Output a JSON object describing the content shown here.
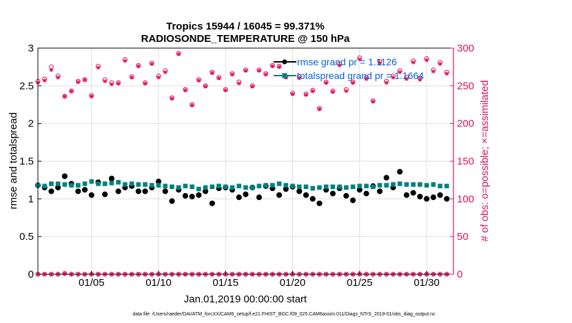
{
  "chart_data": {
    "type": "scatter",
    "title_line1": "Tropics 15944 / 16045 = 99.371%",
    "title_line2": "RADIOSONDE_TEMPERATURE @ 150 hPa",
    "xlabel": "Jan.01,2019 00:00:00 start",
    "ylabel_left": "rmse and totalspread",
    "ylabel_right": "# of obs: o=possible; ×=assimilated",
    "xlim": [
      1,
      32
    ],
    "ylim_left": [
      0,
      3
    ],
    "ylim_right": [
      0,
      300
    ],
    "x_ticks": [
      5,
      10,
      15,
      20,
      25,
      30
    ],
    "x_tick_labels": [
      "01/05",
      "01/10",
      "01/15",
      "01/20",
      "01/25",
      "01/30"
    ],
    "y_ticks_left": [
      "0",
      "0.5",
      "1",
      "1.5",
      "2",
      "2.5",
      "3"
    ],
    "y_ticks_right": [
      "0",
      "50",
      "100",
      "150",
      "200",
      "250",
      "300"
    ],
    "legend": {
      "position": "top-right",
      "entries": [
        "rmse grand pr = 1.1126",
        "totalspread grand pr = 1.1664"
      ]
    },
    "colors": {
      "rmse": "#000000",
      "totalspread": "#008080",
      "obs": "#e0115f",
      "grid": "#dedede",
      "legend_text": "#0b5ed7"
    },
    "x": [
      1.0,
      1.5,
      2.0,
      2.5,
      3.0,
      3.5,
      4.0,
      4.5,
      5.0,
      5.5,
      6.0,
      6.5,
      7.0,
      7.5,
      8.0,
      8.5,
      9.0,
      9.5,
      10.0,
      10.5,
      11.0,
      11.5,
      12.0,
      12.5,
      13.0,
      13.5,
      14.0,
      14.5,
      15.0,
      15.5,
      16.0,
      16.5,
      17.0,
      17.5,
      18.0,
      18.5,
      19.0,
      19.5,
      20.0,
      20.5,
      21.0,
      21.5,
      22.0,
      22.5,
      23.0,
      23.5,
      24.0,
      24.5,
      25.0,
      25.5,
      26.0,
      26.5,
      27.0,
      27.5,
      28.0,
      28.5,
      29.0,
      29.5,
      30.0,
      30.5,
      31.0,
      31.5
    ],
    "series": [
      {
        "name": "rmse",
        "axis": "left",
        "marker": "circle",
        "values": [
          1.18,
          1.15,
          1.1,
          1.15,
          1.3,
          1.2,
          1.1,
          1.12,
          1.05,
          1.22,
          1.06,
          1.27,
          1.1,
          1.15,
          1.17,
          1.1,
          1.1,
          1.15,
          1.23,
          1.1,
          0.97,
          1.12,
          1.04,
          1.03,
          1.05,
          1.1,
          0.94,
          1.14,
          1.15,
          1.12,
          1.02,
          1.06,
          1.15,
          1.02,
          1.17,
          1.14,
          1.05,
          1.13,
          1.16,
          1.1,
          1.05,
          1.0,
          0.94,
          1.12,
          1.07,
          1.14,
          1.04,
          0.98,
          1.12,
          1.07,
          1.17,
          1.1,
          1.28,
          1.15,
          1.36,
          1.05,
          1.08,
          1.03,
          1.0,
          1.02,
          1.05,
          1.0
        ]
      },
      {
        "name": "totalspread",
        "axis": "left",
        "marker": "square",
        "values": [
          1.18,
          1.17,
          1.2,
          1.2,
          1.19,
          1.18,
          1.18,
          1.2,
          1.23,
          1.2,
          1.2,
          1.21,
          1.22,
          1.19,
          1.2,
          1.19,
          1.19,
          1.18,
          1.18,
          1.17,
          1.16,
          1.15,
          1.17,
          1.16,
          1.13,
          1.15,
          1.16,
          1.17,
          1.16,
          1.15,
          1.17,
          1.15,
          1.15,
          1.17,
          1.18,
          1.18,
          1.2,
          1.18,
          1.17,
          1.16,
          1.16,
          1.14,
          1.15,
          1.16,
          1.16,
          1.16,
          1.15,
          1.16,
          1.17,
          1.17,
          1.16,
          1.18,
          1.18,
          1.19,
          1.2,
          1.19,
          1.19,
          1.19,
          1.18,
          1.19,
          1.17,
          1.17
        ]
      },
      {
        "name": "obs possible",
        "axis": "right",
        "marker": "circle-open",
        "values": [
          256,
          259,
          275,
          263,
          236,
          243,
          256,
          258,
          237,
          276,
          258,
          254,
          254,
          285,
          262,
          277,
          254,
          280,
          263,
          270,
          234,
          293,
          245,
          225,
          258,
          250,
          268,
          261,
          245,
          266,
          255,
          271,
          250,
          271,
          266,
          277,
          276,
          262,
          240,
          262,
          239,
          244,
          220,
          255,
          243,
          279,
          245,
          255,
          287,
          261,
          230,
          282,
          256,
          263,
          270,
          261,
          283,
          260,
          286,
          271,
          281,
          268
        ]
      },
      {
        "name": "obs assimilated",
        "axis": "right",
        "marker": "asterisk",
        "values": [
          254,
          257,
          271,
          261,
          236,
          243,
          255,
          258,
          236,
          274,
          256,
          252,
          253,
          283,
          261,
          276,
          253,
          279,
          261,
          268,
          233,
          292,
          244,
          224,
          257,
          249,
          267,
          260,
          244,
          265,
          253,
          270,
          249,
          270,
          265,
          276,
          275,
          261,
          239,
          260,
          238,
          243,
          219,
          254,
          242,
          277,
          243,
          254,
          285,
          259,
          229,
          280,
          254,
          261,
          268,
          259,
          281,
          258,
          284,
          269,
          279,
          266
        ]
      },
      {
        "name": "obs bottom possible",
        "axis": "right",
        "marker": "circle-open",
        "values": [
          0,
          0,
          0,
          0,
          1,
          0,
          0,
          0,
          0,
          0,
          0,
          0,
          0,
          0,
          0,
          0,
          0,
          0,
          0,
          0,
          0,
          0,
          0,
          0,
          0,
          0,
          0,
          0,
          0,
          0,
          0,
          0,
          0,
          0,
          0,
          0,
          0,
          0,
          0,
          0,
          0,
          0,
          0,
          0,
          0,
          0,
          0,
          0,
          0,
          0,
          0,
          0,
          0,
          0,
          0,
          0,
          0,
          0,
          0,
          0,
          0,
          0
        ]
      },
      {
        "name": "obs bottom assimilated",
        "axis": "right",
        "marker": "asterisk",
        "values": [
          0,
          0,
          0,
          0,
          1,
          0,
          0,
          0,
          0,
          0,
          0,
          0,
          0,
          0,
          0,
          0,
          0,
          0,
          0,
          0,
          0,
          0,
          0,
          0,
          0,
          0,
          0,
          0,
          0,
          0,
          0,
          0,
          0,
          0,
          0,
          0,
          0,
          0,
          0,
          0,
          0,
          0,
          0,
          0,
          0,
          0,
          0,
          0,
          0,
          0,
          0,
          0,
          0,
          0,
          0,
          0,
          0,
          0,
          0,
          0,
          0,
          0
        ]
      }
    ],
    "footnote": "data file: /Users/raeder/DAI/ATM_forcXX/CAM6_setup/f.e21.FHIST_BGC.f09_025.CAM6assim.011/Diags_NTrS_2019-01/obs_diag_output.nc"
  }
}
